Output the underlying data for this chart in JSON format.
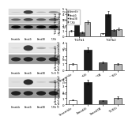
{
  "panel1_bars": {
    "groups": [
      "TGFb1",
      "TGFb2"
    ],
    "categories": [
      "Scramble",
      "Smad4i",
      "Smad3B",
      "TLR3i"
    ],
    "values": [
      [
        1.0,
        3.2,
        0.7,
        2.5
      ],
      [
        0.5,
        4.0,
        1.1,
        1.3
      ]
    ],
    "colors": [
      "#ffffff",
      "#1a1a1a",
      "#555555",
      "#bbbbbb"
    ],
    "ylabel": "TGFb1/TGFb2\n(Norm. to Flag)",
    "ylim": [
      0,
      5.0
    ],
    "yticks": [
      0,
      1,
      2,
      3,
      4,
      5
    ],
    "legend": [
      "Scramble",
      "Smad4i",
      "Smad3B",
      "TLR3i"
    ],
    "errors": [
      [
        0.15,
        0.4,
        0.1,
        0.3
      ],
      [
        0.08,
        0.5,
        0.15,
        0.2
      ]
    ]
  },
  "panel2_bars": {
    "categories": [
      "Scramble",
      "Smad4i",
      "Smad3B",
      "TLR3i"
    ],
    "values": [
      0.9,
      3.0,
      1.1,
      0.9
    ],
    "colors": [
      "#ffffff",
      "#1a1a1a",
      "#555555",
      "#bbbbbb"
    ],
    "ylabel": "p-Smad3/Smad3\n(Fold over Scramble)",
    "ylim": [
      0,
      4.0
    ],
    "yticks": [
      0,
      1,
      2,
      3,
      4
    ],
    "errors": [
      0.1,
      0.35,
      0.12,
      0.1
    ]
  },
  "panel3_bars": {
    "categories": [
      "Scramble",
      "Smad4i",
      "Smad3B",
      "TLR3i"
    ],
    "values": [
      0.7,
      3.6,
      0.6,
      1.1
    ],
    "colors": [
      "#ffffff",
      "#1a1a1a",
      "#555555",
      "#bbbbbb"
    ],
    "ylabel": "p-Smad3/Smad3\n(Fold over Scramble)",
    "ylim": [
      0,
      4.5
    ],
    "yticks": [
      0,
      1,
      2,
      3,
      4
    ],
    "errors": [
      0.08,
      0.4,
      0.08,
      0.15
    ]
  },
  "figure_bg": "#ffffff",
  "bar_edge_color": "#000000",
  "bar_linewidth": 0.4,
  "tick_fontsize": 2.8,
  "label_fontsize": 2.8,
  "errorbar_color": "#000000",
  "wb_panels": [
    {
      "rows": [
        {
          "label": "TGFb1-Flag",
          "bands": [
            0.15,
            0.85,
            0.25,
            0.45
          ],
          "bg": 0.88
        },
        {
          "label": "TGFb2-Flag",
          "bands": [
            0.5,
            0.65,
            0.55,
            0.55
          ],
          "bg": 0.75
        },
        {
          "label": "GAPDH-Flag",
          "bands": [
            0.7,
            0.7,
            0.7,
            0.7
          ],
          "bg": 0.55
        }
      ],
      "xlabels": [
        "Scramble",
        "Smad4i",
        "Smad3B",
        "TLR3i"
      ]
    },
    {
      "rows": [
        {
          "label": "p-Smad3-Myc4",
          "bands": [
            0.1,
            0.9,
            0.3,
            0.15
          ],
          "bg": 0.9
        },
        {
          "label": "Smad3-Myc4",
          "bands": [
            0.6,
            0.65,
            0.6,
            0.6
          ],
          "bg": 0.6
        }
      ],
      "xlabels": [
        "Scramble",
        "Smad4i",
        "Smad3B",
        "Tin B"
      ]
    },
    {
      "rows": [
        {
          "label": "p-Smad3-T179",
          "bands": [
            0.1,
            0.95,
            0.15,
            0.3
          ],
          "bg": 0.88
        },
        {
          "label": "Smad3-T5",
          "bands": [
            0.65,
            0.65,
            0.65,
            0.65
          ],
          "bg": 0.6
        }
      ],
      "xlabels": [
        "Scramble",
        "Smad4i",
        "Smad3B",
        "TLR3i"
      ]
    }
  ]
}
